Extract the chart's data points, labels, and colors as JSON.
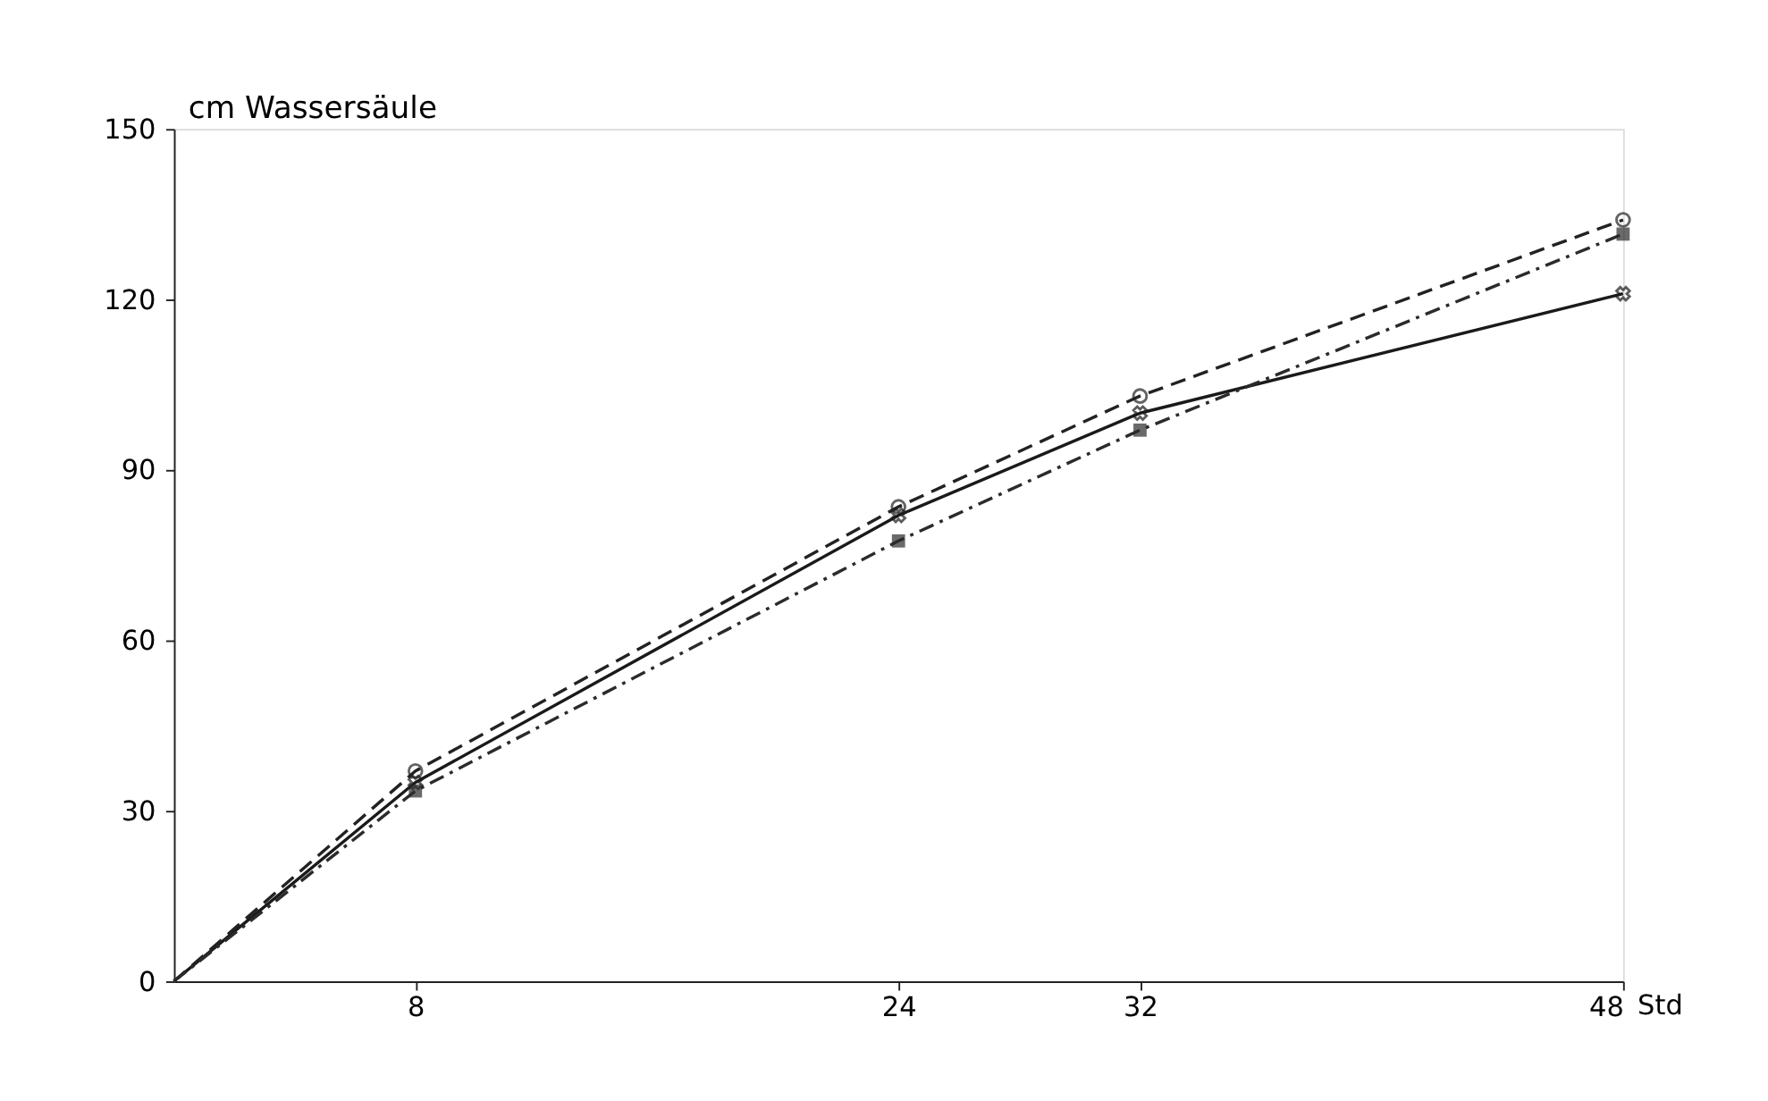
{
  "chart_data": {
    "type": "line",
    "ylabel": "cm Wassersäule",
    "xlabel": "Std",
    "x": [
      0,
      8,
      24,
      32,
      48
    ],
    "xlim": [
      0,
      48
    ],
    "xticks": [
      8,
      24,
      32,
      48
    ],
    "ylim": [
      0,
      150
    ],
    "yticks": [
      0,
      30,
      60,
      90,
      120,
      150
    ],
    "grid": false,
    "series": [
      {
        "color": "#1a1a1a",
        "values": [
          0,
          35,
          82,
          100,
          121
        ],
        "marker": "cross",
        "line_style": "solid"
      },
      {
        "color": "#222222",
        "values": [
          0,
          37,
          83.5,
          103,
          134
        ],
        "marker": "circle",
        "line_style": "dashed"
      },
      {
        "color": "#2b2b2b",
        "values": [
          0,
          33.5,
          77.5,
          97,
          131.5
        ],
        "marker": "square",
        "line_style": "dashdot"
      }
    ]
  }
}
